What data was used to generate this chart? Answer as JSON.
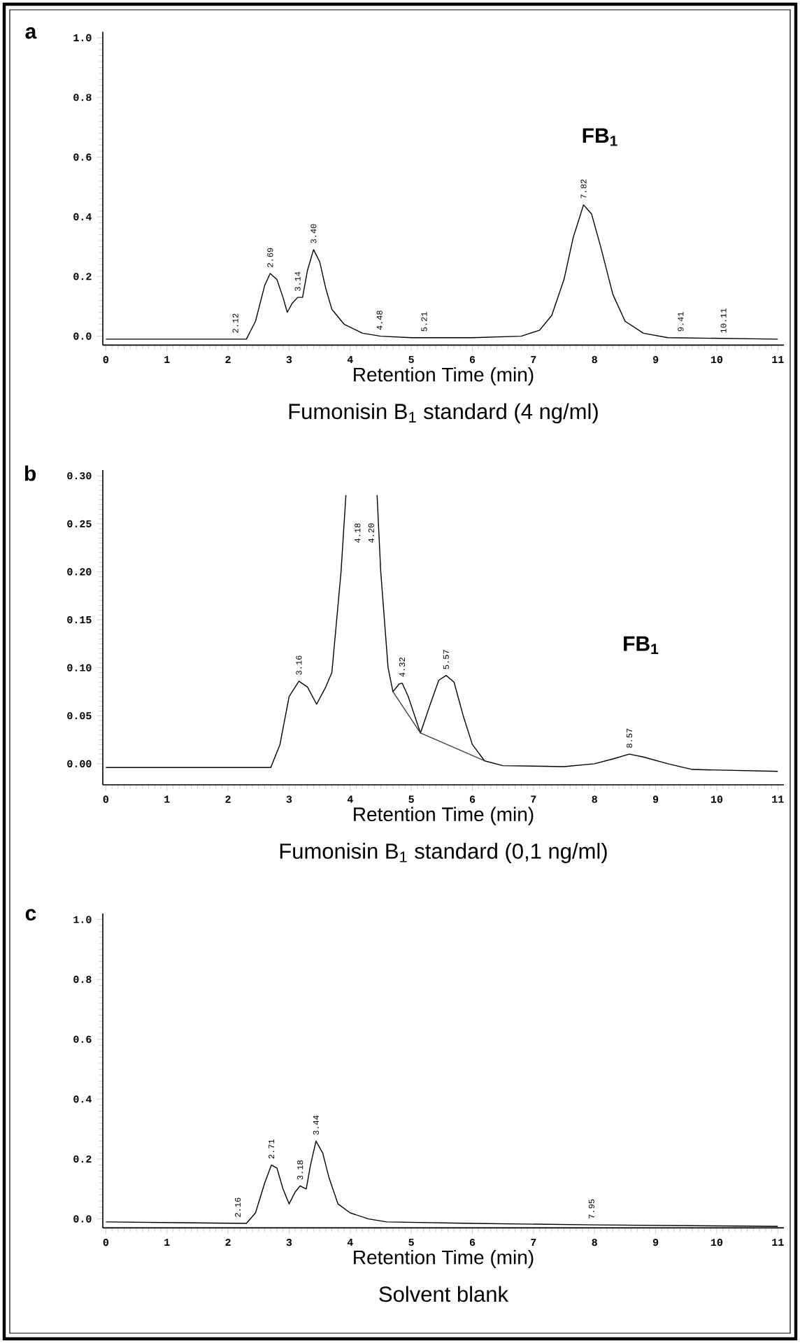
{
  "chart_data": [
    {
      "type": "line",
      "title": "Fumonisin B$_{1}$ standard (4 ng/ml)",
      "xlabel": "Retention Time  (min)",
      "xlim": [
        -0.05,
        11.1
      ],
      "ylim": [
        -0.03,
        1.02
      ],
      "xticks": [
        0,
        1,
        2,
        3,
        4,
        5,
        6,
        7,
        8,
        9,
        10,
        11
      ],
      "yticks": [
        {
          "value": 0,
          "label": "0.0"
        },
        {
          "value": 0.2,
          "label": "0.2"
        },
        {
          "value": 0.4,
          "label": "0.4"
        },
        {
          "value": 0.6,
          "label": "0.6"
        },
        {
          "value": 0.8,
          "label": "0.8"
        },
        {
          "value": 1,
          "label": "1.0"
        }
      ],
      "marker": "none",
      "series": [
        {
          "color": "#000000",
          "x": [
            0,
            2.3,
            2.45,
            2.6,
            2.69,
            2.8,
            2.9,
            2.97,
            3.05,
            3.14,
            3.22,
            3.3,
            3.4,
            3.5,
            3.6,
            3.7,
            3.9,
            4.2,
            4.5,
            5,
            6,
            6.8,
            7.1,
            7.3,
            7.5,
            7.65,
            7.82,
            7.95,
            8.1,
            8.3,
            8.5,
            8.8,
            9.2,
            11
          ],
          "values": [
            -0.01,
            -0.01,
            0.05,
            0.17,
            0.21,
            0.19,
            0.13,
            0.08,
            0.11,
            0.13,
            0.13,
            0.22,
            0.29,
            0.25,
            0.16,
            0.09,
            0.04,
            0.01,
            0,
            -0.005,
            -0.005,
            0,
            0.02,
            0.07,
            0.19,
            0.33,
            0.44,
            0.41,
            0.3,
            0.14,
            0.05,
            0.01,
            -0.005,
            -0.01
          ]
        }
      ],
      "annotations": [
        "a",
        "FB$_{1}$",
        {
          "text": "2.12",
          "x": 2.12,
          "y": -0.01
        },
        {
          "text": "2.69",
          "x": 2.69,
          "y": 0.21
        },
        {
          "text": "3.14",
          "x": 3.14,
          "y": 0.13
        },
        {
          "text": "3.40",
          "x": 3.4,
          "y": 0.29
        },
        {
          "text": "4.48",
          "x": 4.48,
          "y": 0
        },
        {
          "text": "5.21",
          "x": 5.21,
          "y": -0.005
        },
        {
          "text": "7.82",
          "x": 7.82,
          "y": 0.44
        },
        {
          "text": "9.41",
          "x": 9.41,
          "y": -0.005
        },
        {
          "text": "10.11",
          "x": 10.11,
          "y": -0.01
        }
      ]
    },
    {
      "type": "line",
      "title": "Fumonisin B$_{1}$ standard (0,1 ng/ml)",
      "xlabel": "Retention Time  (min)",
      "xlim": [
        -0.05,
        11.1
      ],
      "ylim": [
        -0.022,
        0.306
      ],
      "xticks": [
        0,
        1,
        2,
        3,
        4,
        5,
        6,
        7,
        8,
        9,
        10,
        11
      ],
      "yticks": [
        {
          "value": 0,
          "label": "0.00"
        },
        {
          "value": 0.05,
          "label": "0.05"
        },
        {
          "value": 0.1,
          "label": "0.10"
        },
        {
          "value": 0.15,
          "label": "0.15"
        },
        {
          "value": 0.2,
          "label": "0.20"
        },
        {
          "value": 0.25,
          "label": "0.25"
        },
        {
          "value": 0.3,
          "label": "0.30"
        }
      ],
      "marker": "none",
      "series": [
        {
          "color": "#000000",
          "x": [
            0,
            2.7,
            2.85,
            3.0,
            3.16,
            3.3,
            3.45,
            3.6,
            3.7,
            3.85,
            3.93,
            4.2,
            4.44,
            4.5,
            4.62,
            4.7,
            4.8,
            4.85,
            4.95,
            5.15,
            5.3,
            5.45,
            5.57,
            5.7,
            5.85,
            6.0,
            6.2,
            6.5,
            7.5,
            8.0,
            8.3,
            8.57,
            8.8,
            9.2,
            9.6,
            11
          ],
          "values": [
            -0.004,
            -0.004,
            0.02,
            0.07,
            0.086,
            0.08,
            0.062,
            0.08,
            0.095,
            0.2,
            0.28,
            null,
            0.28,
            0.2,
            0.1,
            0.075,
            0.083,
            0.084,
            0.07,
            0.032,
            0.06,
            0.087,
            0.092,
            0.085,
            0.05,
            0.02,
            0.003,
            -0.002,
            -0.003,
            0,
            0.005,
            0.01,
            0.007,
            0,
            -0.006,
            -0.008
          ]
        },
        {
          "color": "#404040",
          "x": [
            4.7,
            5.15,
            6.2
          ],
          "values": [
            0.075,
            0.032,
            0.003
          ]
        }
      ],
      "annotations": [
        "b",
        "FB$_{1}$",
        "4.18",
        "4.20",
        {
          "text": "3.16",
          "x": 3.16,
          "y": 0.086
        },
        {
          "text": "4.32",
          "x": 4.85,
          "y": 0.084
        },
        {
          "text": "5.57",
          "x": 5.57,
          "y": 0.092
        },
        {
          "text": "8.57",
          "x": 8.57,
          "y": 0.01
        }
      ]
    },
    {
      "type": "line",
      "title": "Solvent blank",
      "xlabel": "Retention Time  (min)",
      "xlim": [
        -0.05,
        11.1
      ],
      "ylim": [
        -0.03,
        1.02
      ],
      "xticks": [
        0,
        1,
        2,
        3,
        4,
        5,
        6,
        7,
        8,
        9,
        10,
        11
      ],
      "yticks": [
        {
          "value": 0,
          "label": "0.0"
        },
        {
          "value": 0.2,
          "label": "0.2"
        },
        {
          "value": 0.4,
          "label": "0.4"
        },
        {
          "value": 0.6,
          "label": "0.6"
        },
        {
          "value": 0.8,
          "label": "0.8"
        },
        {
          "value": 1,
          "label": "1.0"
        }
      ],
      "marker": "none",
      "series": [
        {
          "color": "#000000",
          "x": [
            0,
            2.3,
            2.45,
            2.6,
            2.71,
            2.8,
            2.9,
            3.0,
            3.1,
            3.18,
            3.28,
            3.35,
            3.44,
            3.55,
            3.65,
            3.8,
            4.0,
            4.3,
            4.6,
            6,
            8,
            11
          ],
          "values": [
            -0.01,
            -0.015,
            0.02,
            0.12,
            0.18,
            0.17,
            0.1,
            0.05,
            0.09,
            0.11,
            0.1,
            0.18,
            0.26,
            0.22,
            0.14,
            0.05,
            0.02,
            0,
            -0.01,
            -0.015,
            -0.02,
            -0.025
          ]
        }
      ],
      "annotations": [
        "c",
        {
          "text": "2.16",
          "x": 2.16,
          "y": -0.015
        },
        {
          "text": "2.71",
          "x": 2.71,
          "y": 0.18
        },
        {
          "text": "3.18",
          "x": 3.18,
          "y": 0.11
        },
        {
          "text": "3.44",
          "x": 3.44,
          "y": 0.26
        },
        {
          "text": "7.95",
          "x": 7.95,
          "y": -0.02
        }
      ]
    }
  ]
}
